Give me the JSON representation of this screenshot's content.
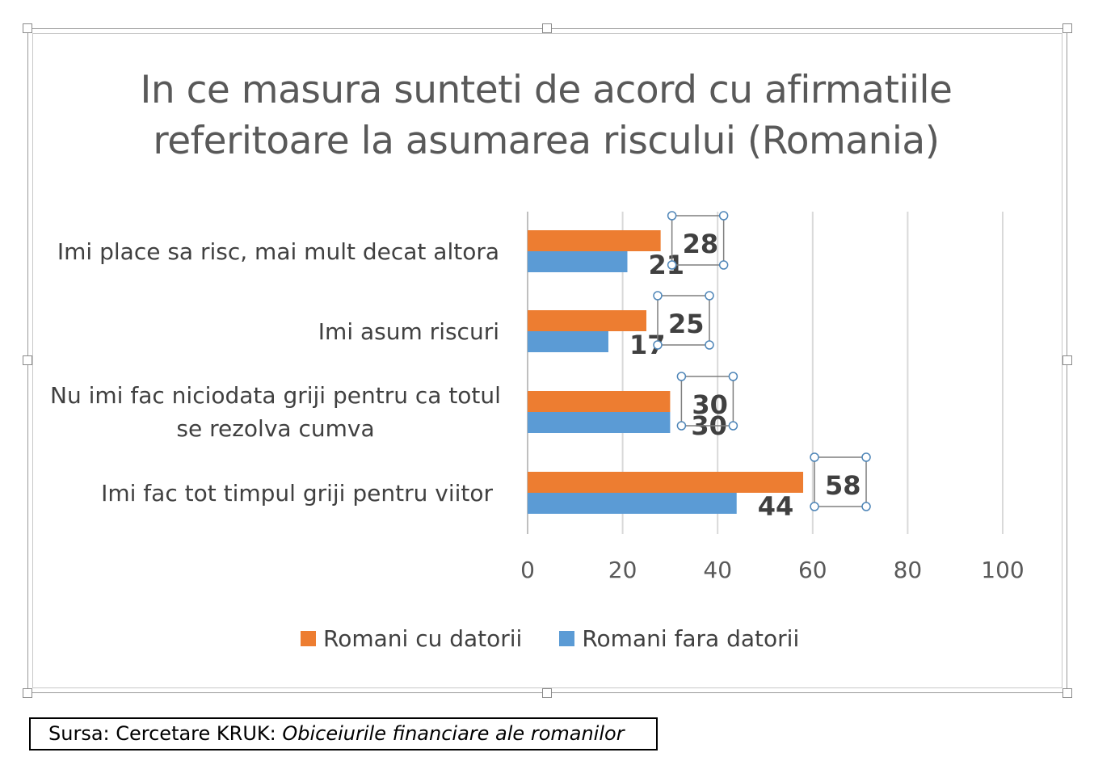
{
  "chart_data": {
    "type": "bar",
    "orientation": "horizontal",
    "title": "In ce masura sunteti de acord cu afirmatiile referitoare la asumarea riscului (Romania)",
    "title_lines": [
      "In ce masura sunteti de acord cu afirmatiile",
      "referitoare la asumarea riscului (Romania)"
    ],
    "categories": [
      "Imi place sa risc, mai mult decat altora",
      "Imi asum riscuri",
      "Nu imi fac niciodata griji pentru ca totul se rezolva cumva",
      "Imi fac tot timpul griji pentru viitor"
    ],
    "category_lines": [
      [
        "Imi place sa risc, mai mult decat altora"
      ],
      [
        "Imi asum riscuri"
      ],
      [
        "Nu imi fac niciodata griji pentru ca totul",
        "se rezolva cumva"
      ],
      [
        "Imi fac tot timpul griji pentru viitor"
      ]
    ],
    "series": [
      {
        "name": "Romani cu datorii",
        "color": "#ED7D31",
        "values": [
          28,
          25,
          30,
          58
        ]
      },
      {
        "name": "Romani fara datorii",
        "color": "#5B9BD5",
        "values": [
          21,
          17,
          30,
          44
        ]
      }
    ],
    "xlim": [
      0,
      100
    ],
    "xticks": [
      "0",
      "20",
      "40",
      "60",
      "80",
      "100"
    ],
    "grid": true,
    "legend_position": "bottom"
  },
  "source": {
    "prefix": "Sursa: Cercetare KRUK: ",
    "italic": "Obiceiurile financiare ale romanilor"
  }
}
